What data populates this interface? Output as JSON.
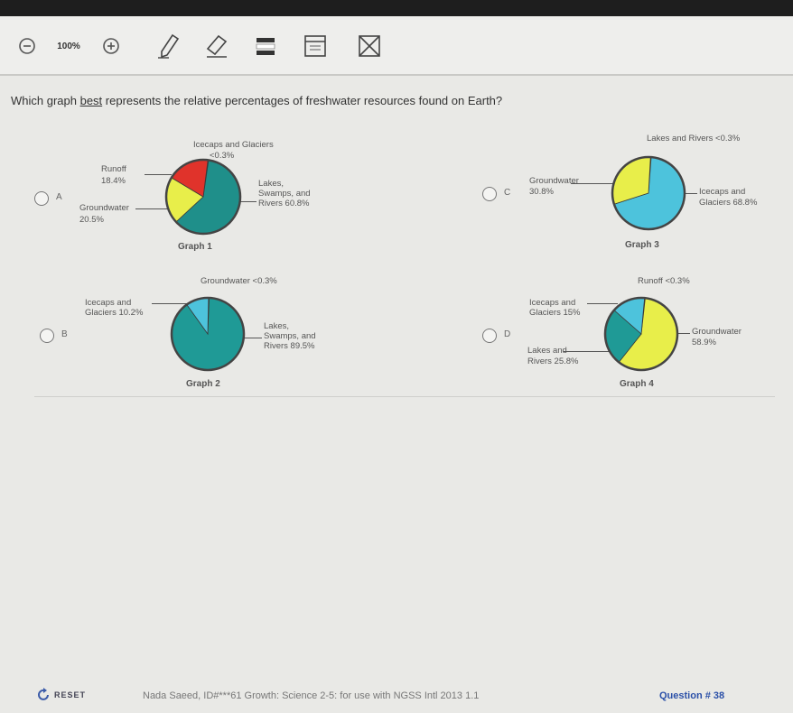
{
  "toolbar": {
    "zoom_label": "100%",
    "icons": [
      "zoom-out-icon",
      "zoom-in-icon",
      "pencil-icon",
      "eraser-icon",
      "highlighter-icon",
      "line-reader-icon",
      "cross-out-icon"
    ]
  },
  "question": {
    "pre": "Which graph ",
    "emph": "best",
    "post": " represents the relative percentages of freshwater resources found on Earth?"
  },
  "options": {
    "a": "A",
    "b": "B",
    "c": "C",
    "d": "D"
  },
  "graph1": {
    "title": "Graph 1",
    "labels": {
      "icecaps": "Icecaps and Glaciers",
      "icecaps_val": "<0.3%",
      "runoff": "Runoff",
      "runoff_val": "18.4%",
      "groundwater": "Groundwater",
      "groundwater_val": "20.5%",
      "lakes1": "Lakes,",
      "lakes2": "Swamps, and",
      "lakes3": "Rivers 60.8%"
    },
    "chart_data": {
      "type": "pie",
      "slices": [
        {
          "label": "Icecaps and Glaciers",
          "value": 0.3,
          "color": "#8ed3e0"
        },
        {
          "label": "Lakes, Swamps, and Rivers",
          "value": 60.8,
          "color": "#1f8f8a"
        },
        {
          "label": "Groundwater",
          "value": 20.5,
          "color": "#e8ee4a"
        },
        {
          "label": "Runoff",
          "value": 18.4,
          "color": "#e0332b"
        }
      ]
    }
  },
  "graph2": {
    "title": "Graph 2",
    "labels": {
      "groundwater": "Groundwater <0.3%",
      "icecaps1": "Icecaps and",
      "icecaps2": "Glaciers 10.2%",
      "lakes1": "Lakes,",
      "lakes2": "Swamps, and",
      "lakes3": "Rivers 89.5%"
    },
    "chart_data": {
      "type": "pie",
      "slices": [
        {
          "label": "Groundwater",
          "value": 0.3,
          "color": "#e8ee4a"
        },
        {
          "label": "Lakes, Swamps, and Rivers",
          "value": 89.5,
          "color": "#1f9a96"
        },
        {
          "label": "Icecaps and Glaciers",
          "value": 10.2,
          "color": "#4dc3dc"
        }
      ]
    }
  },
  "graph3": {
    "title": "Graph 3",
    "labels": {
      "lakes": "Lakes and Rivers <0.3%",
      "groundwater1": "Groundwater",
      "groundwater2": "30.8%",
      "icecaps1": "Icecaps and",
      "icecaps2": "Glaciers 68.8%"
    },
    "chart_data": {
      "type": "pie",
      "slices": [
        {
          "label": "Lakes and Rivers",
          "value": 0.3,
          "color": "#1f8f8a"
        },
        {
          "label": "Icecaps and Glaciers",
          "value": 68.8,
          "color": "#4dc3dc"
        },
        {
          "label": "Groundwater",
          "value": 30.8,
          "color": "#e8ee4a"
        }
      ]
    }
  },
  "graph4": {
    "title": "Graph 4",
    "labels": {
      "runoff": "Runoff <0.3%",
      "icecaps1": "Icecaps and",
      "icecaps2": "Glaciers 15%",
      "lakes1": "Lakes and",
      "lakes2": "Rivers 25.8%",
      "groundwater1": "Groundwater",
      "groundwater2": "58.9%"
    },
    "chart_data": {
      "type": "pie",
      "slices": [
        {
          "label": "Runoff",
          "value": 0.3,
          "color": "#e0332b"
        },
        {
          "label": "Groundwater",
          "value": 58.9,
          "color": "#e8ee4a"
        },
        {
          "label": "Lakes and Rivers",
          "value": 25.8,
          "color": "#1f9a96"
        },
        {
          "label": "Icecaps and Glaciers",
          "value": 15,
          "color": "#4dc3dc"
        }
      ]
    }
  },
  "footer": {
    "reset": "RESET",
    "info": "Nada Saeed, ID#***61   Growth: Science 2-5: for use with NGSS Intl 2013 1.1",
    "question_number": "Question # 38"
  }
}
